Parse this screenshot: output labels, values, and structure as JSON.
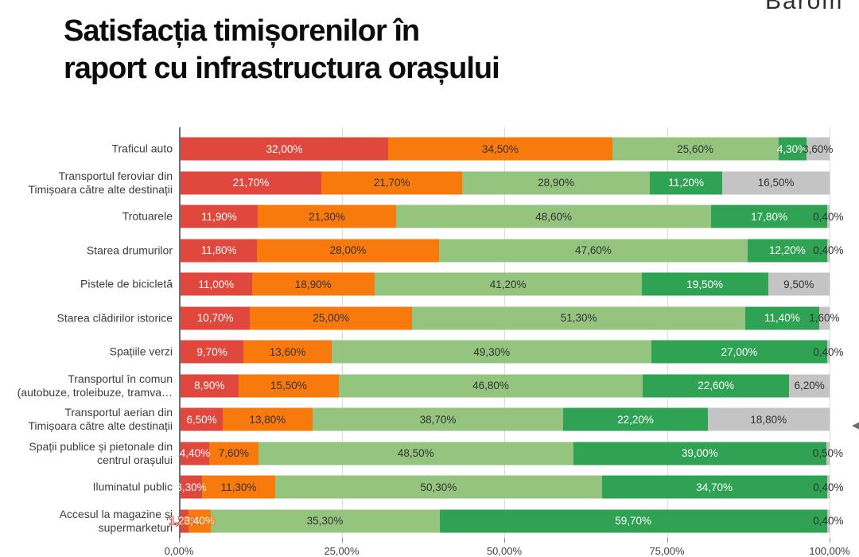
{
  "header": {
    "title_line1": "Satisfacția timișorenilor în",
    "title_line2": "raport cu infrastructura orașului",
    "partial_brand_text": "Barom"
  },
  "chart_data": {
    "type": "bar",
    "orientation": "horizontal",
    "stacked": true,
    "grid": true,
    "legend": "none",
    "xlim": [
      0,
      100
    ],
    "x_ticks": [
      "0,00%",
      "25,00%",
      "50,00%",
      "75,00%",
      "100,00%"
    ],
    "value_label_format": "two decimals, comma separator, percent sign",
    "categories": [
      "Traficul auto",
      "Transportul feroviar din\nTimișoara către alte destinații",
      "Trotuarele",
      "Starea drumurilor",
      "Pistele de bicicletă",
      "Starea clădirilor istorice",
      "Spațiile verzi",
      "Transportul în comun\n(autobuze, troleibuze, tramva…",
      "Transportul aerian din\nTimișoara către alte destinații",
      "Spații publice și pietonale din\ncentrul orașului",
      "Iluminatul public",
      "Accesul la magazine și\nsupermarketuri"
    ],
    "series": [
      {
        "name": "red",
        "color": "#e0473d",
        "label_color": "#ffffff",
        "values": [
          32.0,
          21.7,
          11.9,
          11.8,
          11.0,
          10.7,
          9.7,
          8.9,
          6.5,
          4.4,
          3.3,
          1.2
        ]
      },
      {
        "name": "orange",
        "color": "#f87a0d",
        "label_color": "#333333",
        "values": [
          34.5,
          21.7,
          21.3,
          28.0,
          18.9,
          25.0,
          13.6,
          15.5,
          13.8,
          7.6,
          11.3,
          3.4
        ]
      },
      {
        "name": "light-green",
        "color": "#94c47e",
        "label_color": "#333333",
        "values": [
          25.6,
          28.9,
          48.6,
          47.6,
          41.2,
          51.3,
          49.3,
          46.8,
          38.7,
          48.5,
          50.3,
          35.3
        ]
      },
      {
        "name": "dark-green",
        "color": "#2fa353",
        "label_color": "#ffffff",
        "values": [
          4.3,
          11.2,
          17.8,
          12.2,
          19.5,
          11.4,
          27.0,
          22.6,
          22.2,
          39.0,
          34.7,
          59.7
        ]
      },
      {
        "name": "gray",
        "color": "#c4c4c4",
        "label_color": "#333333",
        "values": [
          3.6,
          16.5,
          0.4,
          0.4,
          9.5,
          1.6,
          0.4,
          6.2,
          18.8,
          0.5,
          0.4,
          0.4
        ]
      }
    ],
    "outline_labels": [
      {
        "row": 11,
        "series": 0
      },
      {
        "row": 11,
        "series": 1
      }
    ]
  },
  "colors": {
    "background": "#ffffff",
    "gridline": "#dcdcdc",
    "axis_line": "#6e6e6e",
    "category_text": "#3d3d3d",
    "tick_text": "#3f3f3f",
    "title_text": "#0c0c0c"
  },
  "icons": {
    "edge_cutoff_glyph": "◀"
  }
}
